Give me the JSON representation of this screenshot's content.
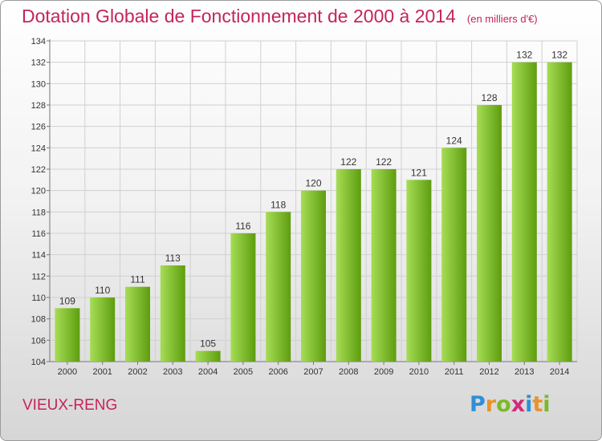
{
  "header": {
    "title": "Dotation Globale de Fonctionnement de 2000 à 2014",
    "subtitle": "(en milliers d'€)"
  },
  "footer": {
    "commune": "VIEUX-RENG",
    "logo": {
      "letters": [
        "P",
        "r",
        "o",
        "x",
        "i",
        "t",
        "i"
      ],
      "colors": [
        "#2f8fd6",
        "#e8932a",
        "#7cb928",
        "#d5287a",
        "#2f8fd6",
        "#e8932a",
        "#7cb928"
      ]
    }
  },
  "colors": {
    "accent": "#c4245c",
    "bar_light": "#a6dd55",
    "bar_dark": "#5e9d0f"
  },
  "chart_data": {
    "type": "bar",
    "title": "Dotation Globale de Fonctionnement de 2000 à 2014",
    "subtitle": "(en milliers d'€)",
    "categories": [
      "2000",
      "2001",
      "2002",
      "2003",
      "2004",
      "2005",
      "2006",
      "2007",
      "2008",
      "2009",
      "2010",
      "2011",
      "2012",
      "2013",
      "2014"
    ],
    "values": [
      109,
      110,
      111,
      113,
      105,
      116,
      118,
      120,
      122,
      122,
      121,
      124,
      128,
      132,
      132
    ],
    "ylim": [
      104,
      134
    ],
    "yticks": [
      104,
      106,
      108,
      110,
      112,
      114,
      116,
      118,
      120,
      122,
      124,
      126,
      128,
      130,
      132,
      134
    ],
    "grid": true,
    "legend": "none"
  }
}
